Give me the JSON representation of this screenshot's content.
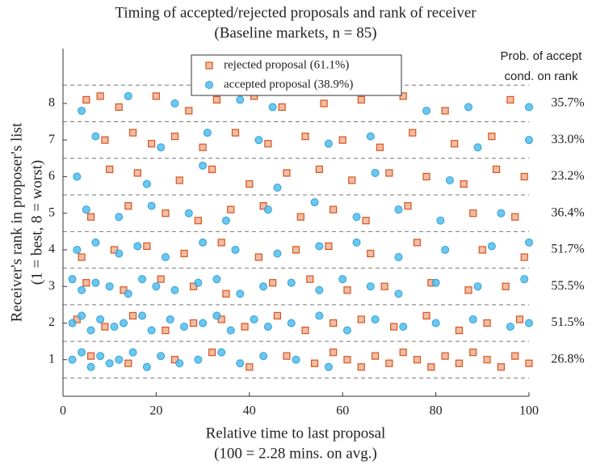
{
  "chart_data": {
    "type": "scatter",
    "title": "Timing of accepted/rejected proposals and rank of receiver",
    "subtitle": "(Baseline markets, n = 85)",
    "xlabel": [
      "Relative time to last proposal",
      "(100 = 2.28 mins. on avg.)"
    ],
    "ylabel": [
      "Receiver's rank in proposer's list",
      "(1 = best, 8 = worst)"
    ],
    "xlim": [
      0,
      100
    ],
    "ylim": [
      0,
      9.5
    ],
    "xticks": [
      0,
      20,
      40,
      60,
      80,
      100
    ],
    "yticks": [
      1,
      2,
      3,
      4,
      5,
      6,
      7,
      8
    ],
    "separators": [
      0.5,
      1.5,
      2.5,
      3.5,
      4.5,
      5.5,
      6.5,
      7.5,
      8.5
    ],
    "legend": "upper center",
    "series": [
      {
        "name": "rejected proposal (61.1%)",
        "color": "#d95319",
        "marker": "square",
        "x": [
          5,
          8,
          12,
          20,
          27,
          33,
          41,
          47,
          56,
          64,
          73,
          82,
          96,
          9,
          15,
          19,
          24,
          30,
          37,
          44,
          52,
          60,
          68,
          75,
          84,
          92,
          10,
          16,
          25,
          32,
          40,
          48,
          55,
          62,
          70,
          78,
          86,
          93,
          99,
          6,
          14,
          22,
          29,
          36,
          43,
          51,
          58,
          65,
          74,
          88,
          97,
          4,
          11,
          18,
          26,
          34,
          42,
          50,
          57,
          66,
          76,
          90,
          99,
          5,
          13,
          21,
          28,
          35,
          45,
          53,
          61,
          69,
          79,
          87,
          95,
          3,
          9,
          15,
          22,
          28,
          34,
          39,
          46,
          52,
          58,
          64,
          71,
          78,
          85,
          91,
          98,
          6,
          14,
          24,
          32,
          40,
          48,
          54,
          58,
          61,
          64,
          67,
          70,
          73,
          76,
          79,
          82,
          85,
          88,
          91,
          94,
          97,
          100
        ],
        "y": [
          8.1,
          8.2,
          7.9,
          8.2,
          7.8,
          8.1,
          8.2,
          7.9,
          8.0,
          8.1,
          8.2,
          7.8,
          8.1,
          7.0,
          7.2,
          6.9,
          7.1,
          6.8,
          7.2,
          6.9,
          7.1,
          7.0,
          6.8,
          7.2,
          6.9,
          7.1,
          6.2,
          6.1,
          5.9,
          6.2,
          5.8,
          6.1,
          6.2,
          5.9,
          6.1,
          6.0,
          5.8,
          6.2,
          6.0,
          4.9,
          5.2,
          5.0,
          4.8,
          5.1,
          5.2,
          4.9,
          5.1,
          4.8,
          5.2,
          5.0,
          4.9,
          3.8,
          4.0,
          4.1,
          3.9,
          4.2,
          3.8,
          4.0,
          4.1,
          3.9,
          4.2,
          4.0,
          3.8,
          3.1,
          2.9,
          3.2,
          3.0,
          2.8,
          3.1,
          3.2,
          2.9,
          3.0,
          3.1,
          2.9,
          3.0,
          2.1,
          1.9,
          2.2,
          1.8,
          2.0,
          2.1,
          1.9,
          2.2,
          1.8,
          2.0,
          2.1,
          1.9,
          2.2,
          1.8,
          2.0,
          2.1,
          1.1,
          0.9,
          1.0,
          1.2,
          0.8,
          1.1,
          0.9,
          1.2,
          1.0,
          0.8,
          1.1,
          0.9,
          1.2,
          1.0,
          0.8,
          1.1,
          0.9,
          1.2,
          1.0,
          0.8,
          1.1,
          0.9
        ]
      },
      {
        "name": "accepted proposal (38.9%)",
        "color": "#4dbeee",
        "marker": "circle",
        "x": [
          4,
          14,
          24,
          38,
          45,
          78,
          87,
          100,
          7,
          21,
          31,
          42,
          57,
          66,
          89,
          100,
          3,
          18,
          30,
          46,
          67,
          83,
          5,
          12,
          19,
          27,
          35,
          44,
          54,
          63,
          72,
          81,
          94,
          3,
          7,
          12,
          16,
          22,
          30,
          37,
          46,
          55,
          63,
          72,
          82,
          92,
          100,
          2,
          4,
          7,
          10,
          14,
          17,
          20,
          24,
          29,
          33,
          38,
          43,
          49,
          55,
          60,
          66,
          72,
          80,
          89,
          99,
          2,
          4,
          6,
          8,
          11,
          13,
          17,
          19,
          23,
          26,
          30,
          33,
          36,
          41,
          44,
          49,
          55,
          61,
          67,
          73,
          80,
          88,
          96,
          100,
          2,
          4,
          6,
          8,
          10,
          12,
          15,
          18,
          21,
          25,
          29,
          34,
          38,
          43,
          50,
          57
        ],
        "y": [
          7.8,
          8.2,
          8.0,
          8.1,
          7.9,
          7.8,
          7.9,
          7.9,
          7.1,
          6.8,
          7.2,
          7.0,
          6.9,
          7.1,
          6.8,
          7.0,
          6.0,
          5.8,
          6.3,
          5.7,
          6.1,
          5.9,
          5.1,
          4.9,
          5.2,
          5.0,
          4.8,
          5.1,
          5.3,
          4.9,
          5.1,
          4.8,
          5.0,
          4.0,
          4.2,
          3.9,
          4.1,
          3.8,
          4.2,
          4.0,
          3.9,
          4.1,
          4.2,
          3.8,
          4.0,
          4.1,
          4.2,
          3.2,
          2.9,
          3.1,
          3.0,
          2.8,
          3.2,
          3.0,
          2.9,
          3.1,
          3.2,
          2.8,
          3.0,
          3.1,
          2.9,
          3.2,
          3.0,
          2.8,
          3.1,
          3.0,
          3.2,
          2.0,
          2.2,
          1.8,
          2.1,
          1.9,
          2.0,
          2.2,
          1.8,
          2.1,
          1.9,
          2.0,
          2.2,
          1.8,
          2.1,
          1.9,
          2.0,
          2.2,
          1.8,
          2.1,
          1.9,
          2.0,
          2.1,
          1.9,
          2.0,
          1.0,
          1.2,
          0.8,
          1.1,
          0.9,
          1.0,
          1.2,
          0.8,
          1.1,
          0.9,
          1.0,
          1.2,
          0.9,
          1.1,
          1.0,
          0.8
        ]
      }
    ],
    "rank_probability_header": [
      "Prob. of accept",
      "cond. on rank"
    ],
    "rank_probabilities": {
      "ranks": [
        1,
        2,
        3,
        4,
        5,
        6,
        7,
        8
      ],
      "values": [
        26.8,
        51.5,
        55.5,
        51.7,
        36.4,
        23.2,
        33.0,
        35.7
      ],
      "value_labels": [
        "26.8%",
        "51.5%",
        "55.5%",
        "51.7%",
        "36.4%",
        "23.2%",
        "33.0%",
        "35.7%"
      ]
    }
  }
}
